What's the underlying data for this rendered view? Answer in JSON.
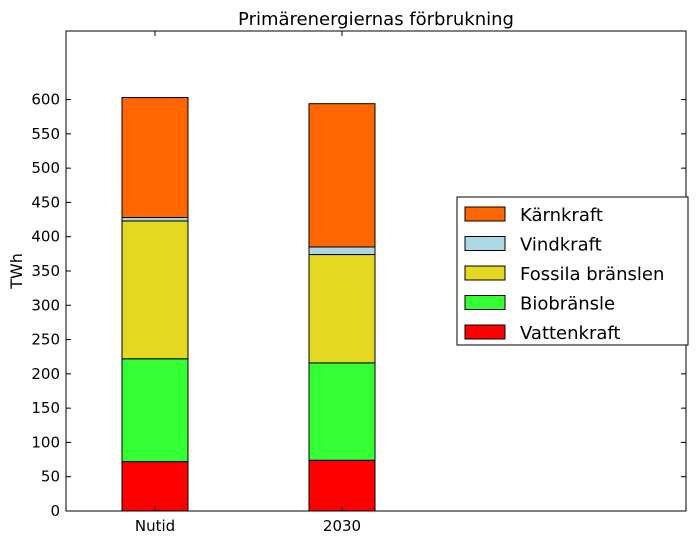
{
  "chart_data": {
    "type": "bar",
    "stacked": true,
    "title": "Primärenergiernas förbrukning",
    "xlabel": "",
    "ylabel": "TWh",
    "categories": [
      "Nutid",
      "2030"
    ],
    "ylim": [
      0,
      700
    ],
    "yticks": [
      0,
      50,
      100,
      150,
      200,
      250,
      300,
      350,
      400,
      450,
      500,
      550,
      600
    ],
    "series": [
      {
        "name": "Vattenkraft",
        "color": "#ff0000",
        "values": [
          72,
          74
        ]
      },
      {
        "name": "Biobränsle",
        "color": "#33ff33",
        "values": [
          150,
          142
        ]
      },
      {
        "name": "Fossila bränslen",
        "color": "#e5d822",
        "values": [
          201,
          158
        ]
      },
      {
        "name": "Vindkraft",
        "color": "#add8e6",
        "values": [
          5,
          11
        ]
      },
      {
        "name": "Kärnkraft",
        "color": "#ff6600",
        "values": [
          175,
          209
        ]
      }
    ],
    "legend": {
      "position": "center-right",
      "order": [
        "Kärnkraft",
        "Vindkraft",
        "Fossila bränslen",
        "Biobränsle",
        "Vattenkraft"
      ]
    },
    "grid": false
  }
}
